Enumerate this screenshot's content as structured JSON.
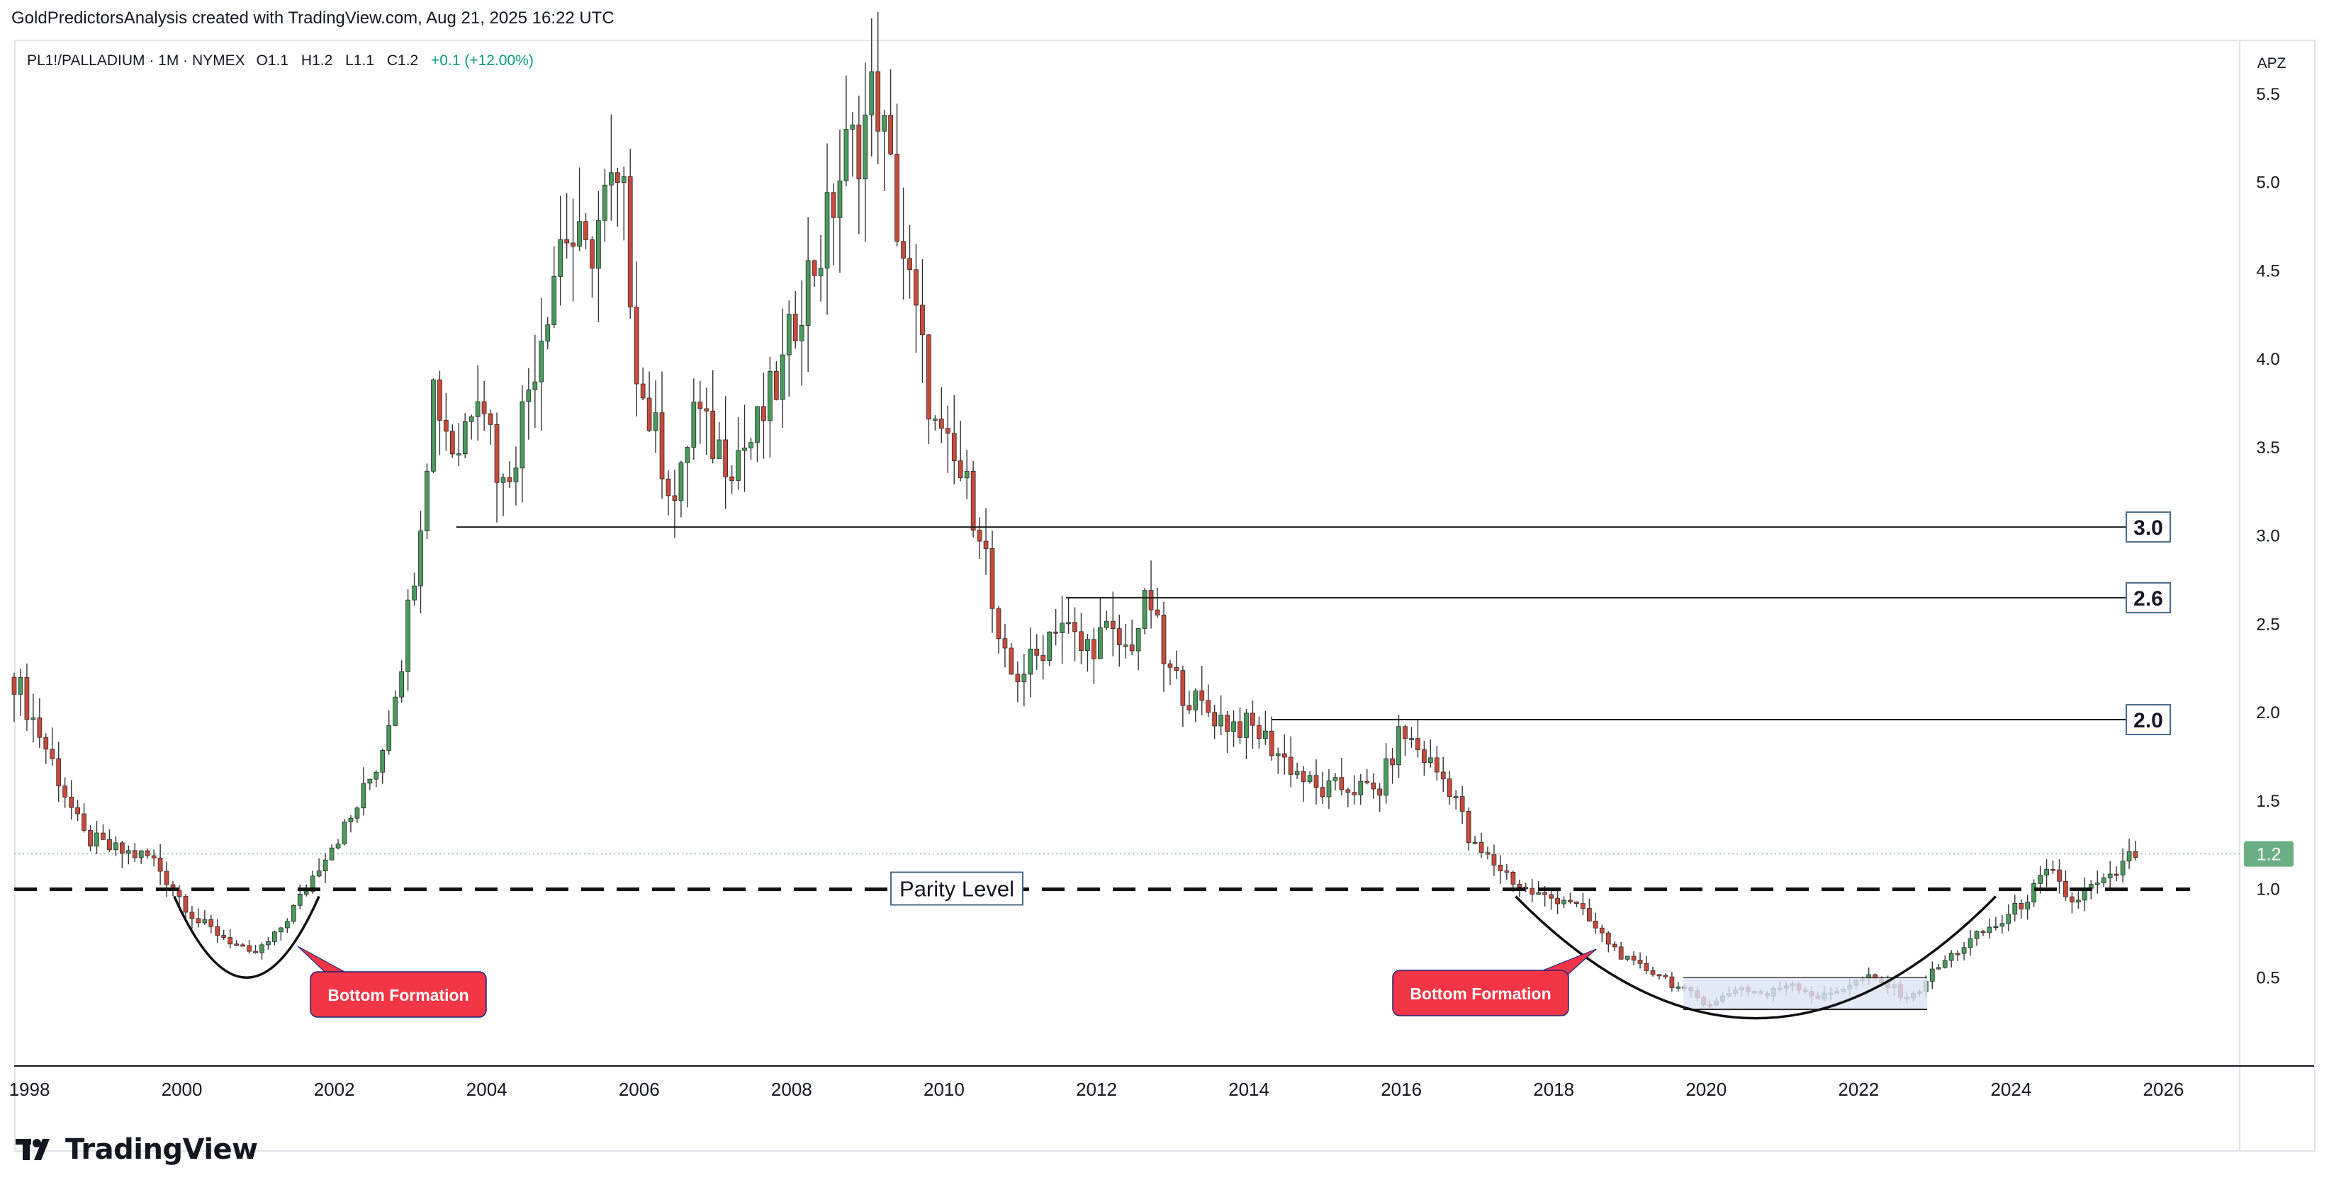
{
  "header": {
    "attribution": "GoldPredictorsAnalysis created with TradingView.com, Aug 21, 2025 16:22 UTC"
  },
  "legend": {
    "symbol": "PL1!/PALLADIUM · 1M · NYMEX",
    "open": "O1.1",
    "high": "H1.2",
    "low": "L1.1",
    "close": "C1.2",
    "change": "+0.1 (+12.00%)",
    "change_color": "#089981"
  },
  "scale_label": "APZ",
  "footer": {
    "brand": "TradingView"
  },
  "colors": {
    "up": "#4a9a5e",
    "down": "#c94a3b",
    "wick": "#333333",
    "price_badge": "#6bae82",
    "callout": "#f23645",
    "box_fill": "#dde3f5"
  },
  "chart_data": {
    "type": "candlestick",
    "timeframe": "1M",
    "y_axis": {
      "min": 0.0,
      "max": 5.8,
      "ticks": [
        0.5,
        1.0,
        1.5,
        2.0,
        2.5,
        3.0,
        3.5,
        4.0,
        4.5,
        5.0,
        5.5
      ]
    },
    "x_axis": {
      "min": 1997.8,
      "max": 2027.0,
      "ticks": [
        "1998",
        "2000",
        "2002",
        "2004",
        "2006",
        "2008",
        "2010",
        "2012",
        "2014",
        "2016",
        "2018",
        "2020",
        "2022",
        "2024",
        "2026"
      ]
    },
    "last_price": "1.2",
    "price_path": [
      [
        1997.8,
        2.2
      ],
      [
        1998.3,
        1.72
      ],
      [
        1998.7,
        1.3
      ],
      [
        1999.1,
        1.22
      ],
      [
        1999.6,
        1.18
      ],
      [
        1999.9,
        1.0
      ],
      [
        2000.2,
        0.82
      ],
      [
        2000.6,
        0.72
      ],
      [
        2000.9,
        0.62
      ],
      [
        2001.2,
        0.72
      ],
      [
        2001.6,
        0.98
      ],
      [
        2001.9,
        1.22
      ],
      [
        2002.2,
        1.38
      ],
      [
        2002.6,
        1.75
      ],
      [
        2002.9,
        2.35
      ],
      [
        2003.1,
        3.0
      ],
      [
        2003.3,
        3.85
      ],
      [
        2003.6,
        3.45
      ],
      [
        2003.9,
        3.95
      ],
      [
        2004.2,
        3.25
      ],
      [
        2004.4,
        3.55
      ],
      [
        2004.8,
        4.35
      ],
      [
        2005.0,
        4.75
      ],
      [
        2005.3,
        4.55
      ],
      [
        2005.6,
        4.95
      ],
      [
        2005.8,
        4.85
      ],
      [
        2006.0,
        3.85
      ],
      [
        2006.3,
        3.45
      ],
      [
        2006.5,
        3.15
      ],
      [
        2006.7,
        3.75
      ],
      [
        2006.9,
        3.55
      ],
      [
        2007.2,
        3.45
      ],
      [
        2007.5,
        3.55
      ],
      [
        2007.9,
        3.95
      ],
      [
        2008.1,
        4.35
      ],
      [
        2008.4,
        4.65
      ],
      [
        2008.7,
        5.15
      ],
      [
        2008.9,
        5.25
      ],
      [
        2009.1,
        5.55
      ],
      [
        2009.4,
        4.75
      ],
      [
        2009.7,
        4.05
      ],
      [
        2009.9,
        3.55
      ],
      [
        2010.2,
        3.35
      ],
      [
        2010.5,
        3.05
      ],
      [
        2010.7,
        2.35
      ],
      [
        2010.9,
        2.2
      ],
      [
        2011.2,
        2.3
      ],
      [
        2011.5,
        2.55
      ],
      [
        2011.8,
        2.35
      ],
      [
        2012.1,
        2.45
      ],
      [
        2012.4,
        2.35
      ],
      [
        2012.7,
        2.65
      ],
      [
        2012.9,
        2.25
      ],
      [
        2013.3,
        2.05
      ],
      [
        2013.7,
        1.95
      ],
      [
        2014.1,
        1.9
      ],
      [
        2014.5,
        1.72
      ],
      [
        2014.9,
        1.55
      ],
      [
        2015.3,
        1.58
      ],
      [
        2015.7,
        1.55
      ],
      [
        2016.0,
        1.9
      ],
      [
        2016.3,
        1.75
      ],
      [
        2016.7,
        1.55
      ],
      [
        2016.9,
        1.25
      ],
      [
        2017.3,
        1.12
      ],
      [
        2017.6,
        1.0
      ],
      [
        2017.9,
        0.95
      ],
      [
        2018.2,
        0.95
      ],
      [
        2018.6,
        0.75
      ],
      [
        2019.0,
        0.58
      ],
      [
        2019.4,
        0.52
      ],
      [
        2019.7,
        0.42
      ],
      [
        2020.1,
        0.35
      ],
      [
        2020.4,
        0.45
      ],
      [
        2020.8,
        0.4
      ],
      [
        2021.1,
        0.48
      ],
      [
        2021.5,
        0.38
      ],
      [
        2021.8,
        0.45
      ],
      [
        2022.1,
        0.5
      ],
      [
        2022.4,
        0.45
      ],
      [
        2022.7,
        0.38
      ],
      [
        2022.9,
        0.5
      ],
      [
        2023.2,
        0.62
      ],
      [
        2023.6,
        0.75
      ],
      [
        2023.9,
        0.82
      ],
      [
        2024.2,
        0.95
      ],
      [
        2024.5,
        1.1
      ],
      [
        2024.8,
        0.92
      ],
      [
        2025.0,
        1.0
      ],
      [
        2025.3,
        1.05
      ],
      [
        2025.6,
        1.2
      ]
    ],
    "annotations": {
      "horizontal_lines": [
        {
          "label": "3.0",
          "value": 3.05,
          "from": 2003.6
        },
        {
          "label": "2.6",
          "value": 2.65,
          "from": 2011.6
        },
        {
          "label": "2.0",
          "value": 1.96,
          "from": 2014.3
        }
      ],
      "parity_line": {
        "label": "Parity Level",
        "value": 1.0
      },
      "bottom_formations": [
        {
          "label": "Bottom Formation",
          "arc_from": 1999.9,
          "arc_to": 2001.8,
          "arc_low": 0.5
        },
        {
          "label": "Bottom Formation",
          "arc_from": 2017.5,
          "arc_to": 2023.8,
          "arc_low": 0.27
        }
      ],
      "consolidation_box": {
        "x_from": 2019.7,
        "x_to": 2022.9,
        "y_from": 0.32,
        "y_to": 0.5
      }
    }
  }
}
